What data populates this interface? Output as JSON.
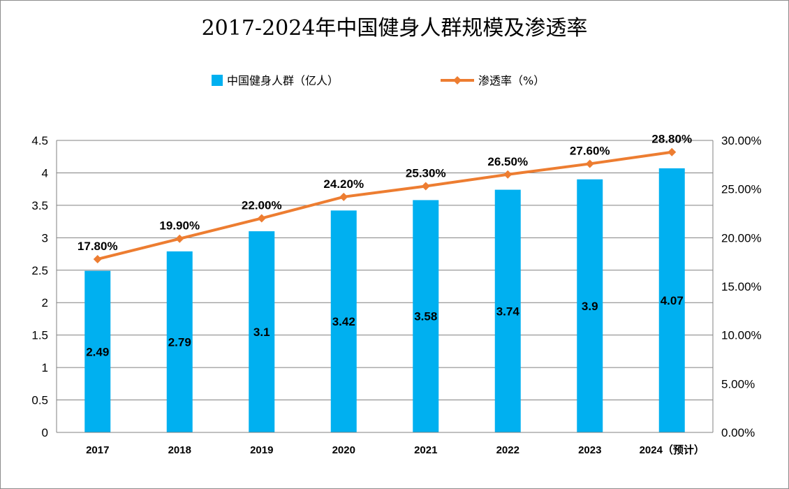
{
  "chart_data": {
    "type": "bar",
    "title": "2017-2024年中国健身人群规模及渗透率",
    "categories": [
      "2017",
      "2018",
      "2019",
      "2020",
      "2021",
      "2022",
      "2023",
      "2024（预计）"
    ],
    "series": [
      {
        "name": "中国健身人群（亿人）",
        "type": "bar",
        "axis": "left",
        "color": "#00b0f0",
        "values": [
          2.49,
          2.79,
          3.1,
          3.42,
          3.58,
          3.74,
          3.9,
          4.07
        ],
        "labels": [
          "2.49",
          "2.79",
          "3.1",
          "3.42",
          "3.58",
          "3.74",
          "3.9",
          "4.07"
        ]
      },
      {
        "name": "渗透率（%）",
        "type": "line",
        "axis": "right",
        "color": "#ed7d31",
        "values": [
          17.8,
          19.9,
          22.0,
          24.2,
          25.3,
          26.5,
          27.6,
          28.8
        ],
        "labels": [
          "17.80%",
          "19.90%",
          "22.00%",
          "24.20%",
          "25.30%",
          "26.50%",
          "27.60%",
          "28.80%"
        ]
      }
    ],
    "y_left": {
      "range": [
        0,
        4.5
      ],
      "ticks": [
        0,
        0.5,
        1,
        1.5,
        2,
        2.5,
        3,
        3.5,
        4,
        4.5
      ],
      "tick_labels": [
        "0",
        "0.5",
        "1",
        "1.5",
        "2",
        "2.5",
        "3",
        "3.5",
        "4",
        "4.5"
      ]
    },
    "y_right": {
      "range": [
        0,
        30
      ],
      "ticks": [
        0,
        5,
        10,
        15,
        20,
        25,
        30
      ],
      "tick_labels": [
        "0.00%",
        "5.00%",
        "10.00%",
        "15.00%",
        "20.00%",
        "25.00%",
        "30.00%"
      ]
    },
    "grid": true,
    "legend_position": "top",
    "gridline_color": "#808080"
  }
}
